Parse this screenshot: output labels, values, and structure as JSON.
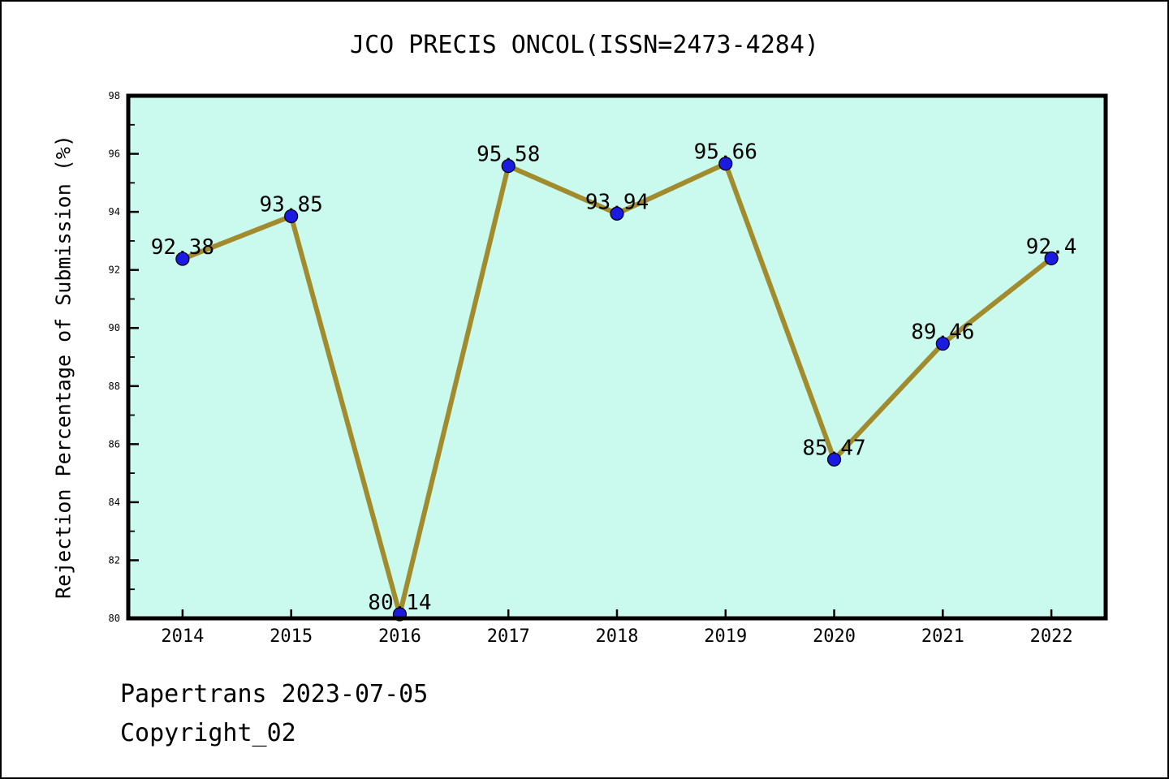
{
  "page": {
    "footer_line1": "Papertrans 2023-07-05",
    "footer_line2": "Copyright_02"
  },
  "chart_data": {
    "type": "line",
    "title": "JCO PRECIS ONCOL(ISSN=2473-4284)",
    "xlabel": "",
    "ylabel": "Rejection Percentage of Submission (%)",
    "categories": [
      "2014",
      "2015",
      "2016",
      "2017",
      "2018",
      "2019",
      "2020",
      "2021",
      "2022"
    ],
    "series": [
      {
        "name": "Rejection Percentage of Submission",
        "values": [
          92.38,
          93.85,
          80.14,
          95.58,
          93.94,
          95.66,
          85.47,
          89.46,
          92.4
        ],
        "point_labels": [
          "92.38",
          "93.85",
          "80.14",
          "95.58",
          "93.94",
          "95.66",
          "85.47",
          "89.46",
          "92.4"
        ]
      }
    ],
    "ylim": [
      80,
      98
    ],
    "y_major_step": 2,
    "y_minor_step": 1,
    "grid": false,
    "legend": "none",
    "colors": {
      "line": "#a28b2c",
      "marker": "#1a1ae0",
      "marker_edge": "#000000",
      "plot_background": "#c9faed",
      "axis": "#000000",
      "text": "#000000"
    }
  }
}
